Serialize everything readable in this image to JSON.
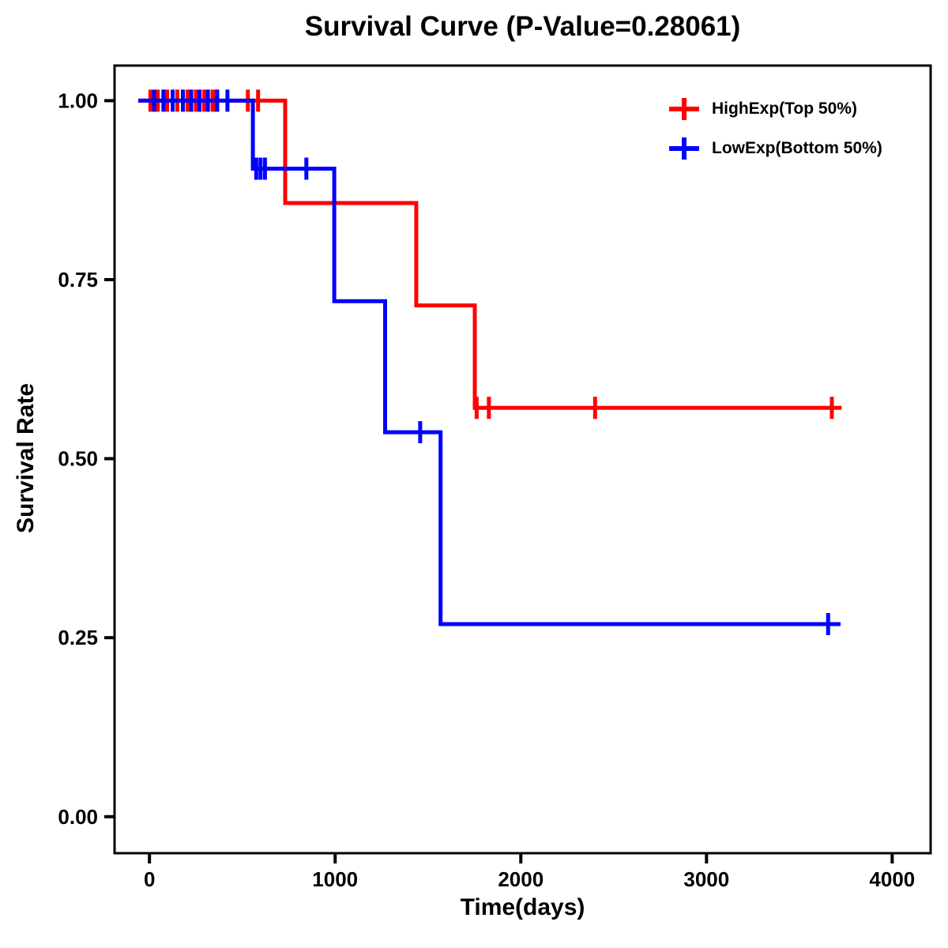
{
  "chart_data": {
    "type": "line",
    "subtype": "kaplan-meier-step-survival",
    "title": "Survival Curve (P-Value=0.28061)",
    "p_value": "0.28061",
    "xlabel": "Time(days)",
    "ylabel": "Survival Rate",
    "grid": false,
    "legend_position": "top-right",
    "background_color": "#FFFFFF",
    "axis_color": "#000000",
    "xlim": [
      -188,
      4207
    ],
    "ylim": [
      -0.051,
      1.049
    ],
    "x_ticks": [
      {
        "v": 0,
        "label": "0"
      },
      {
        "v": 1000,
        "label": "1000"
      },
      {
        "v": 2000,
        "label": "2000"
      },
      {
        "v": 3000,
        "label": "3000"
      },
      {
        "v": 4000,
        "label": "4000"
      }
    ],
    "y_ticks": [
      {
        "v": 0.0,
        "label": "0.00"
      },
      {
        "v": 0.25,
        "label": "0.25"
      },
      {
        "v": 0.5,
        "label": "0.50"
      },
      {
        "v": 0.75,
        "label": "0.75"
      },
      {
        "v": 1.0,
        "label": "1.00"
      }
    ],
    "series": [
      {
        "name": "HighExp(Top 50%)",
        "color": "#FF0000",
        "steps": [
          [
            -60,
            1.0
          ],
          [
            731,
            1.0
          ],
          [
            731,
            0.857
          ],
          [
            1437,
            0.857
          ],
          [
            1437,
            0.714
          ],
          [
            1752,
            0.714
          ],
          [
            1752,
            0.571
          ],
          [
            3728,
            0.571
          ]
        ],
        "censors": [
          [
            5,
            1.0
          ],
          [
            45,
            1.0
          ],
          [
            95,
            1.0
          ],
          [
            150,
            1.0
          ],
          [
            205,
            1.0
          ],
          [
            250,
            1.0
          ],
          [
            295,
            1.0
          ],
          [
            340,
            1.0
          ],
          [
            357,
            1.0
          ],
          [
            530,
            1.0
          ],
          [
            585,
            1.0
          ],
          [
            1762,
            0.571
          ],
          [
            1828,
            0.571
          ],
          [
            2400,
            0.571
          ],
          [
            3675,
            0.571
          ]
        ]
      },
      {
        "name": "LowExp(Bottom 50%)",
        "color": "#0000FF",
        "steps": [
          [
            -60,
            1.0
          ],
          [
            557,
            1.0
          ],
          [
            557,
            0.905
          ],
          [
            995,
            0.905
          ],
          [
            995,
            0.72
          ],
          [
            1269,
            0.72
          ],
          [
            1269,
            0.537
          ],
          [
            1568,
            0.537
          ],
          [
            1568,
            0.269
          ],
          [
            3722,
            0.269
          ]
        ],
        "censors": [
          [
            25,
            1.0
          ],
          [
            75,
            1.0
          ],
          [
            125,
            1.0
          ],
          [
            180,
            1.0
          ],
          [
            225,
            1.0
          ],
          [
            270,
            1.0
          ],
          [
            315,
            1.0
          ],
          [
            365,
            1.0
          ],
          [
            420,
            1.0
          ],
          [
            575,
            0.905
          ],
          [
            598,
            0.905
          ],
          [
            622,
            0.905
          ],
          [
            845,
            0.905
          ],
          [
            1458,
            0.537
          ],
          [
            3655,
            0.269
          ]
        ]
      }
    ]
  }
}
